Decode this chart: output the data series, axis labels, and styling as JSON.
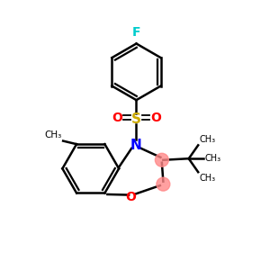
{
  "bg_color": "#ffffff",
  "atom_colors": {
    "N": "#0000ff",
    "O": "#ff0000",
    "S": "#ccaa00",
    "F": "#00cccc",
    "C": "#000000"
  },
  "bond_color": "#000000",
  "highlight_color": "#ff8888",
  "figsize": [
    3.0,
    3.0
  ],
  "dpi": 100,
  "xlim": [
    0,
    10
  ],
  "ylim": [
    0,
    10
  ]
}
